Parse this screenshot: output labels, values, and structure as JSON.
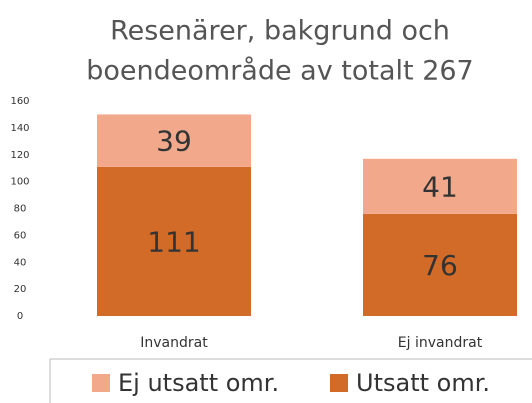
{
  "chart_data": {
    "type": "stacked_bar",
    "title": [
      "Resenärer, bakgrund och",
      "boendeområde av totalt 267"
    ],
    "categories": [
      "Invandrat",
      "Ej invandrat"
    ],
    "series": [
      {
        "name": "Utsatt omr.",
        "color": "#d36b28",
        "values": [
          111,
          76
        ]
      },
      {
        "name": "Ej utsatt omr.",
        "color": "#f2a98b",
        "values": [
          39,
          41
        ]
      }
    ],
    "ylim": [
      0,
      160
    ],
    "yticks": [
      0,
      20,
      40,
      60,
      80,
      100,
      120,
      140,
      160
    ],
    "grid": false,
    "legend": "bottom"
  }
}
